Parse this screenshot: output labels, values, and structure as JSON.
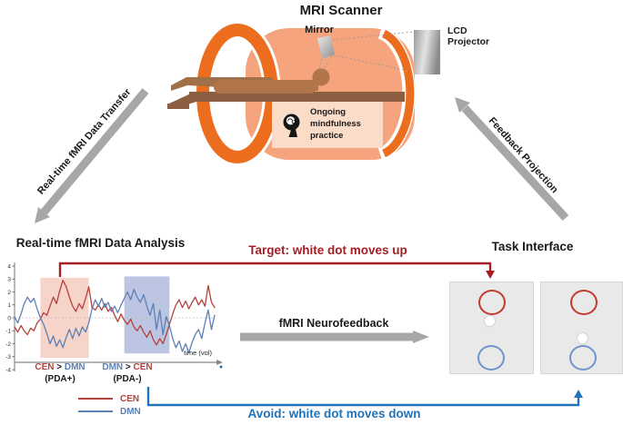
{
  "scanner": {
    "title": "MRI Scanner",
    "mirror_label": "Mirror",
    "projector_label": "LCD\nProjector",
    "practice_label": "Ongoing\nmindfulness\npractice"
  },
  "arrows": {
    "data_transfer_label": "Real-time fMRI Data Transfer",
    "feedback_projection_label": "Feedback Projection",
    "neurofeedback_label": "fMRI Neurofeedback"
  },
  "analysis": {
    "title": "Real-time fMRI Data Analysis",
    "condition_positive": {
      "a": "CEN",
      "op": ">",
      "b": "DMN",
      "sub": "(PDA+)"
    },
    "condition_negative": {
      "a": "DMN",
      "op": ">",
      "b": "CEN",
      "sub": "(PDA-)"
    },
    "legend": [
      {
        "label": "CEN"
      },
      {
        "label": "DMN"
      }
    ]
  },
  "feedback": {
    "target_label": "Target: white dot moves up",
    "avoid_label": "Avoid: white dot moves down"
  },
  "task": {
    "title": "Task Interface"
  },
  "colors": {
    "accent_red": "#a41e23",
    "accent_blue": "#2173b9",
    "cen_line": "#b5413c",
    "dmn_line": "#5d80b6",
    "scanner_orange": "#ee7023",
    "scanner_body": "#f5a47e",
    "practice_box": "#fbdcc8",
    "arrow_gray": "#a7a7a7",
    "target_ring": "#c43b2d",
    "avoid_ring": "#7094cc",
    "white_dot": "#ffffff"
  },
  "chart_data": {
    "type": "line",
    "title": "Real-time fMRI Data Analysis",
    "xlabel": "time (vol)",
    "ylabel": "",
    "ylim": [
      -4,
      4
    ],
    "yticks": [
      4,
      3,
      2,
      1,
      0,
      -1,
      -2,
      -3,
      -4
    ],
    "x_range": [
      0,
      62
    ],
    "grid": false,
    "zero_line": true,
    "legend_position": "bottom-left",
    "series": [
      {
        "name": "CEN",
        "color": "#b5413c",
        "values": [
          -0.7,
          -1.1,
          -0.6,
          -1.0,
          -1.3,
          -0.8,
          -1.0,
          -0.4,
          -0.1,
          0.4,
          0.2,
          0.9,
          1.6,
          1.1,
          2.1,
          2.9,
          2.4,
          1.6,
          0.9,
          0.5,
          1.1,
          0.7,
          1.5,
          2.4,
          0.8,
          0.6,
          1.0,
          0.6,
          1.1,
          0.5,
          0.8,
          0.2,
          -0.3,
          0.3,
          -0.2,
          -0.5,
          -0.1,
          -0.7,
          -1.0,
          -0.6,
          -1.1,
          -1.5,
          -1.0,
          -1.7,
          -2.1,
          -1.6,
          -2.0,
          -1.3,
          -0.5,
          0.3,
          1.0,
          1.4,
          0.8,
          1.3,
          0.7,
          1.2,
          1.6,
          1.0,
          1.4,
          0.9,
          2.5,
          1.2,
          0.8
        ]
      },
      {
        "name": "DMN",
        "color": "#5d80b6",
        "values": [
          0.1,
          -0.4,
          0.3,
          1.1,
          1.6,
          1.2,
          1.5,
          0.7,
          0.0,
          -0.5,
          -1.2,
          -2.0,
          -1.4,
          -2.2,
          -1.7,
          -2.3,
          -1.5,
          -0.9,
          -1.6,
          -0.8,
          -1.4,
          -0.7,
          -1.1,
          -0.4,
          0.7,
          1.4,
          0.9,
          1.5,
          0.8,
          1.2,
          0.5,
          0.9,
          0.4,
          1.0,
          1.5,
          2.0,
          1.4,
          2.2,
          1.6,
          1.2,
          1.8,
          0.9,
          0.2,
          1.1,
          -0.9,
          0.6,
          -1.3,
          0.1,
          -0.6,
          -1.6,
          -2.3,
          -1.8,
          -2.6,
          -2.0,
          -2.7,
          -1.9,
          -1.3,
          -0.9,
          -1.6,
          -0.4,
          0.6,
          -0.9,
          0.2
        ]
      }
    ],
    "regions": [
      {
        "label": "CEN > DMN (PDA+)",
        "x0": 8,
        "x1": 23,
        "y0": -3.1,
        "y1": 3.1,
        "color": "#f7d4c9"
      },
      {
        "label": "DMN > CEN (PDA-)",
        "x0": 34,
        "x1": 48,
        "y0": -2.75,
        "y1": 3.2,
        "color": "#bcc6e3"
      }
    ]
  }
}
